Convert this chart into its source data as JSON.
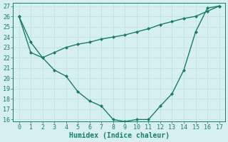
{
  "line1_x": [
    0,
    1,
    2,
    3,
    4,
    5,
    6,
    7,
    8,
    9,
    10,
    11,
    12,
    13,
    14,
    15,
    16,
    17
  ],
  "line1_y": [
    26,
    23.5,
    22,
    20.8,
    20.2,
    18.7,
    17.8,
    17.3,
    16,
    15.8,
    16,
    16,
    17.3,
    18.5,
    20.8,
    24.5,
    26.8,
    27
  ],
  "line2_x": [
    0,
    1,
    2,
    3,
    4,
    5,
    6,
    7,
    8,
    9,
    10,
    11,
    12,
    13,
    14,
    15,
    16,
    17
  ],
  "line2_y": [
    26,
    22.5,
    22,
    22.5,
    23,
    23.3,
    23.5,
    23.8,
    24,
    24.2,
    24.5,
    24.8,
    25.2,
    25.5,
    25.8,
    26,
    26.5,
    27
  ],
  "line_color": "#1a7a6e",
  "bg_color": "#d6f0ef",
  "grid_color": "#c4e4e2",
  "xlabel": "Humidex (Indice chaleur)",
  "ylim": [
    16,
    27
  ],
  "xlim": [
    -0.5,
    17.5
  ],
  "yticks": [
    16,
    17,
    18,
    19,
    20,
    21,
    22,
    23,
    24,
    25,
    26,
    27
  ],
  "xticks": [
    0,
    1,
    2,
    3,
    4,
    5,
    6,
    7,
    8,
    9,
    10,
    11,
    12,
    13,
    14,
    15,
    16,
    17
  ],
  "marker": "D",
  "markersize": 2.0,
  "linewidth": 1.0,
  "xlabel_fontsize": 7,
  "tick_fontsize": 6,
  "fig_width": 3.2,
  "fig_height": 2.0,
  "dpi": 100
}
